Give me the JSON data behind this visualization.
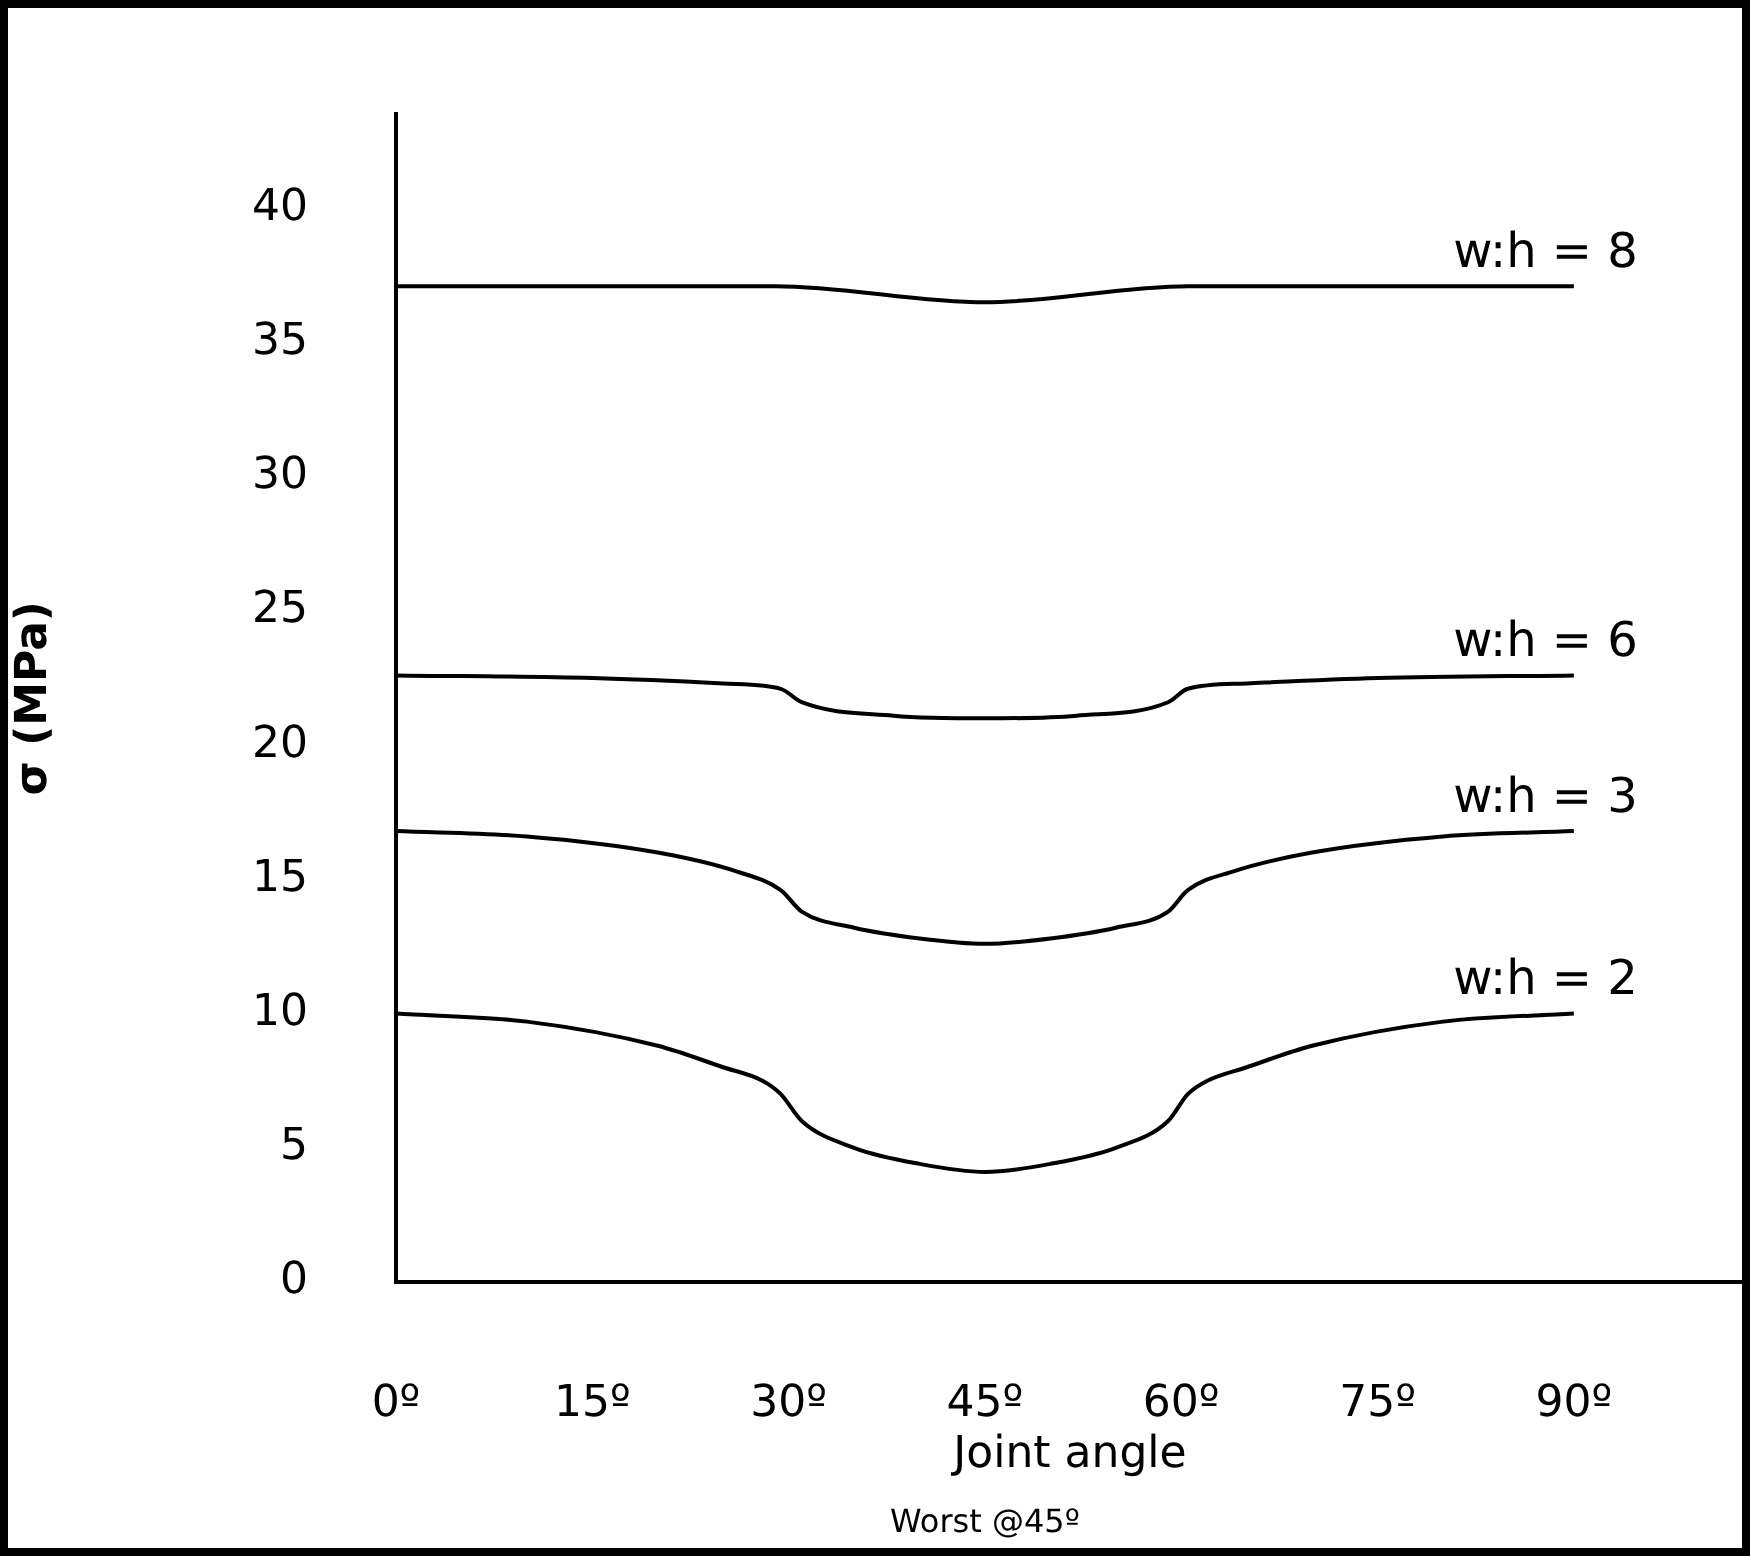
{
  "chart_data": {
    "type": "line",
    "xlabel": "Joint angle",
    "ylabel": "σ (MPa)",
    "annotations": [
      "Worst @45º"
    ],
    "xlim": [
      0,
      103
    ],
    "ylim": [
      0,
      43.5
    ],
    "xticks": [
      {
        "value": 0,
        "label": "0º"
      },
      {
        "value": 15,
        "label": "15º"
      },
      {
        "value": 30,
        "label": "30º"
      },
      {
        "value": 45,
        "label": "45º"
      },
      {
        "value": 60,
        "label": "60º"
      },
      {
        "value": 75,
        "label": "75º"
      },
      {
        "value": 90,
        "label": "90º"
      }
    ],
    "yticks": [
      0,
      5,
      10,
      15,
      20,
      25,
      30,
      35,
      40
    ],
    "grid": false,
    "legend": false,
    "marker": "none",
    "line_style": "solid",
    "series": [
      {
        "name": "w:h = 8",
        "color": "#000000",
        "x": [
          0,
          29,
          45,
          60.5,
          90
        ],
        "values": [
          37.1,
          37.1,
          36.5,
          37.1,
          37.1
        ]
      },
      {
        "name": "w:h = 6",
        "color": "#000000",
        "x": [
          0,
          15,
          25,
          29.4,
          31,
          38,
          45,
          52,
          59,
          60.5,
          65,
          75,
          90
        ],
        "values": [
          22.6,
          22.5,
          22.3,
          22.1,
          21.6,
          21.1,
          21.0,
          21.1,
          21.6,
          22.1,
          22.3,
          22.5,
          22.6
        ]
      },
      {
        "name": "w:h = 3",
        "color": "#000000",
        "x": [
          0,
          10,
          20,
          26,
          29.4,
          31,
          35,
          40,
          45,
          50,
          55,
          59,
          60.5,
          64,
          70,
          80,
          90
        ],
        "values": [
          16.8,
          16.6,
          16.0,
          15.3,
          14.6,
          13.8,
          13.2,
          12.8,
          12.6,
          12.8,
          13.2,
          13.8,
          14.6,
          15.3,
          16.0,
          16.6,
          16.8
        ]
      },
      {
        "name": "w:h = 2",
        "color": "#000000",
        "x": [
          0,
          10,
          20,
          25,
          28,
          29.4,
          31,
          35,
          40,
          45,
          50,
          55,
          59,
          60.5,
          62,
          65,
          70,
          80,
          90
        ],
        "values": [
          10,
          9.7,
          8.8,
          8.0,
          7.5,
          7.0,
          6.0,
          5.0,
          4.4,
          4.1,
          4.4,
          5.0,
          6.0,
          7.0,
          7.5,
          8.0,
          8.8,
          9.7,
          10
        ]
      }
    ]
  }
}
